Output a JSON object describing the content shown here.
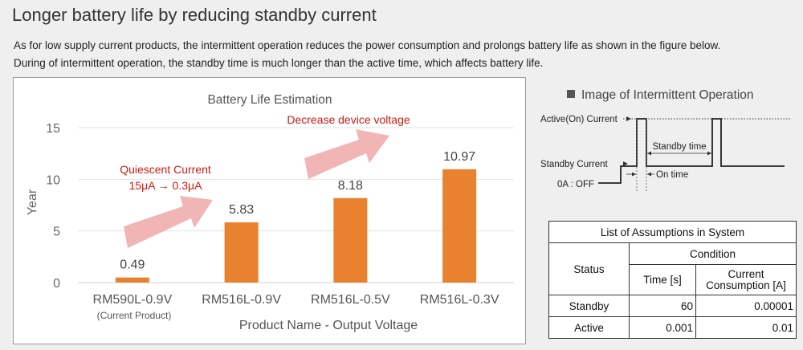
{
  "header": {
    "title": "Longer battery life by reducing standby current",
    "desc_lines": [
      "As for low supply current products, the intermittent operation reduces the power consumption and prolongs battery life as shown in the figure below.",
      "During of intermittent operation, the standby time is much longer than the active time, which affects battery life."
    ]
  },
  "chart_data": {
    "type": "bar",
    "title": "Battery Life Estimation",
    "xlabel": "Product Name - Output Voltage",
    "ylabel": "Year",
    "ylim": [
      0,
      15
    ],
    "yticks": [
      0,
      5,
      10,
      15
    ],
    "categories": [
      "RM590L-0.9V",
      "RM516L-0.9V",
      "RM516L-0.5V",
      "RM516L-0.3V"
    ],
    "category_sublabels": [
      "(Current Product)",
      "",
      "",
      ""
    ],
    "values": [
      0.49,
      5.83,
      8.18,
      10.97
    ],
    "data_labels": [
      "0.49",
      "5.83",
      "8.18",
      "10.97"
    ],
    "bar_color": "#e8822e",
    "grid": true,
    "annotations": {
      "quiescent_title": "Quiescent Current",
      "quiescent_detail": "15μA → 0.3μA",
      "voltage": "Decrease device voltage",
      "annotation_color": "#cc1b10",
      "arrow_color": "#f0a8a8"
    }
  },
  "operation": {
    "title": "Image of Intermittent Operation",
    "active_label": "Active(On) Current",
    "standby_label": "Standby Current",
    "off_label": "0A : OFF",
    "standby_time_label": "Standby time",
    "on_time_label": "On time"
  },
  "assumptions": {
    "title": "List of Assumptions in System",
    "status_header": "Status",
    "condition_header": "Condition",
    "time_header": "Time [s]",
    "consumption_header_1": "Current",
    "consumption_header_2": "Consumption [A]",
    "rows": [
      {
        "status": "Standby",
        "time": "60",
        "consumption": "0.00001"
      },
      {
        "status": "Active",
        "time": "0.001",
        "consumption": "0.01"
      }
    ]
  }
}
